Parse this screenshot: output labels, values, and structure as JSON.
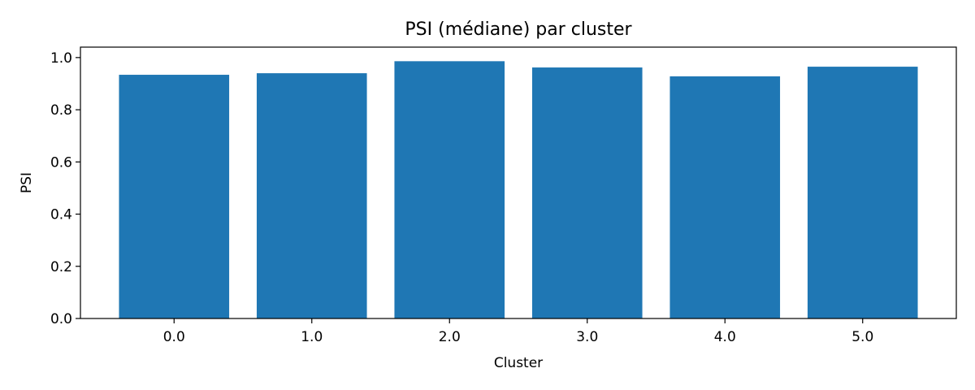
{
  "chart_data": {
    "type": "bar",
    "title": "PSI (médiane) par cluster",
    "xlabel": "Cluster",
    "ylabel": "PSI",
    "categories": [
      "0.0",
      "1.0",
      "2.0",
      "3.0",
      "4.0",
      "5.0"
    ],
    "values": [
      0.934,
      0.94,
      0.986,
      0.962,
      0.928,
      0.965
    ],
    "ylim": [
      0,
      1.04
    ],
    "yticks": [
      0.0,
      0.2,
      0.4,
      0.6,
      0.8,
      1.0
    ],
    "ytick_labels": [
      "0.0",
      "0.2",
      "0.4",
      "0.6",
      "0.8",
      "1.0"
    ],
    "bar_color": "#1f77b4",
    "grid": false,
    "legend": "none"
  }
}
